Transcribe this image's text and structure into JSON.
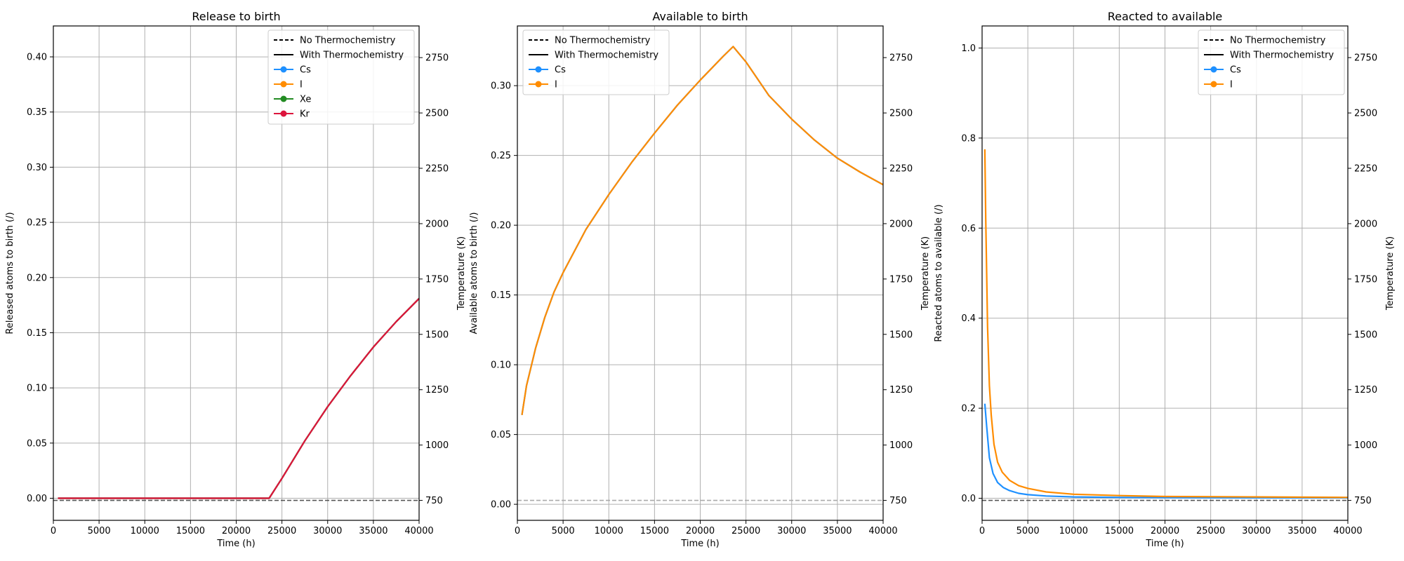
{
  "colors": {
    "Cs": "#1e90ff",
    "I": "#ff8c00",
    "Xe": "#228b22",
    "Kr": "#dc143c",
    "grid": "#b0b0b0",
    "temperature_dashed_left": "#555555",
    "temperature_dashed_mid": "#aaaaaa"
  },
  "chart_data": [
    {
      "type": "line",
      "title": "Release to birth",
      "xlabel": "Time (h)",
      "ylabel": "Released atoms to birth (/)",
      "y2label": "Temperature (K)",
      "xlim": [
        0,
        40000
      ],
      "ylim": [
        -0.02,
        0.428
      ],
      "y2lim": [
        660,
        2893
      ],
      "xticks": [
        0,
        5000,
        10000,
        15000,
        20000,
        25000,
        30000,
        35000,
        40000
      ],
      "yticks": [
        0.0,
        0.05,
        0.1,
        0.15,
        0.2,
        0.25,
        0.3,
        0.35,
        0.4
      ],
      "ytick_labels": [
        "0.00",
        "0.05",
        "0.10",
        "0.15",
        "0.20",
        "0.25",
        "0.30",
        "0.35",
        "0.40"
      ],
      "y2ticks": [
        750,
        1000,
        1250,
        1500,
        1750,
        2000,
        2250,
        2500,
        2750
      ],
      "grid": true,
      "legend_position": "top-right",
      "legend": [
        {
          "label": "No Thermochemistry",
          "style": "dashed",
          "color": "#000000"
        },
        {
          "label": "With Thermochemistry",
          "style": "solid",
          "color": "#000000"
        },
        {
          "label": "Cs",
          "style": "marker",
          "color": "#1e90ff"
        },
        {
          "label": "I",
          "style": "marker",
          "color": "#ff8c00"
        },
        {
          "label": "Xe",
          "style": "marker",
          "color": "#228b22"
        },
        {
          "label": "Kr",
          "style": "marker",
          "color": "#dc143c"
        }
      ],
      "temperature": {
        "axis": "y2",
        "value": 750,
        "style": "dashed",
        "color": "#555555"
      },
      "series": [
        {
          "name": "Cs",
          "color": "#1e90ff",
          "x": [
            500,
            5000,
            10000,
            15000,
            20000,
            23600,
            25000,
            27500,
            30000,
            32500,
            35000,
            37500,
            40000
          ],
          "values": [
            0,
            0,
            0,
            0,
            0,
            0,
            0.018,
            0.052,
            0.083,
            0.111,
            0.137,
            0.16,
            0.181
          ]
        },
        {
          "name": "I",
          "color": "#ff8c00",
          "x": [
            500,
            5000,
            10000,
            15000,
            20000,
            23600,
            25000,
            27500,
            30000,
            32500,
            35000,
            37500,
            40000
          ],
          "values": [
            0,
            0,
            0,
            0,
            0,
            0,
            0.018,
            0.052,
            0.083,
            0.111,
            0.137,
            0.16,
            0.181
          ]
        },
        {
          "name": "Xe",
          "color": "#228b22",
          "x": [
            500,
            5000,
            10000,
            15000,
            20000,
            23600,
            25000,
            27500,
            30000,
            32500,
            35000,
            37500,
            40000
          ],
          "values": [
            0,
            0,
            0,
            0,
            0,
            0,
            0.018,
            0.052,
            0.083,
            0.111,
            0.137,
            0.16,
            0.181
          ]
        },
        {
          "name": "Kr",
          "color": "#dc143c",
          "x": [
            500,
            5000,
            10000,
            15000,
            20000,
            23600,
            25000,
            27500,
            30000,
            32500,
            35000,
            37500,
            40000
          ],
          "values": [
            0,
            0,
            0,
            0,
            0,
            0,
            0.018,
            0.052,
            0.083,
            0.111,
            0.137,
            0.16,
            0.181
          ]
        }
      ]
    },
    {
      "type": "line",
      "title": "Available to birth",
      "xlabel": "Time (h)",
      "ylabel": "Available atoms to birth (/)",
      "y2label": "Temperature (K)",
      "xlim": [
        0,
        40000
      ],
      "ylim": [
        -0.0115,
        0.3428
      ],
      "y2lim": [
        660,
        2893
      ],
      "xticks": [
        0,
        5000,
        10000,
        15000,
        20000,
        25000,
        30000,
        35000,
        40000
      ],
      "yticks": [
        0.0,
        0.05,
        0.1,
        0.15,
        0.2,
        0.25,
        0.3
      ],
      "ytick_labels": [
        "0.00",
        "0.05",
        "0.10",
        "0.15",
        "0.20",
        "0.25",
        "0.30"
      ],
      "y2ticks": [
        750,
        1000,
        1250,
        1500,
        1750,
        2000,
        2250,
        2500,
        2750
      ],
      "grid": true,
      "legend_position": "top-left",
      "legend": [
        {
          "label": "No Thermochemistry",
          "style": "dashed",
          "color": "#000000"
        },
        {
          "label": "With Thermochemistry",
          "style": "solid",
          "color": "#000000"
        },
        {
          "label": "Cs",
          "style": "marker",
          "color": "#1e90ff"
        },
        {
          "label": "I",
          "style": "marker",
          "color": "#ff8c00"
        }
      ],
      "temperature": {
        "axis": "y2",
        "value": 750,
        "style": "dashed",
        "color": "#aaaaaa"
      },
      "series": [
        {
          "name": "Cs",
          "color": "#1e90ff",
          "x": [
            500,
            1000,
            2000,
            3000,
            4000,
            5000,
            7500,
            10000,
            12500,
            15000,
            17500,
            20000,
            22500,
            23600,
            25000,
            27500,
            30000,
            32500,
            35000,
            37500,
            40000
          ],
          "values": [
            0.064,
            0.085,
            0.112,
            0.134,
            0.152,
            0.166,
            0.197,
            0.222,
            0.245,
            0.266,
            0.286,
            0.304,
            0.321,
            0.328,
            0.317,
            0.293,
            0.276,
            0.261,
            0.248,
            0.238,
            0.229
          ]
        },
        {
          "name": "I",
          "color": "#ff8c00",
          "x": [
            500,
            1000,
            2000,
            3000,
            4000,
            5000,
            7500,
            10000,
            12500,
            15000,
            17500,
            20000,
            22500,
            23600,
            25000,
            27500,
            30000,
            32500,
            35000,
            37500,
            40000
          ],
          "values": [
            0.064,
            0.085,
            0.112,
            0.134,
            0.152,
            0.166,
            0.197,
            0.222,
            0.245,
            0.266,
            0.286,
            0.304,
            0.321,
            0.328,
            0.317,
            0.293,
            0.276,
            0.261,
            0.248,
            0.238,
            0.229
          ]
        }
      ]
    },
    {
      "type": "line",
      "title": "Reacted to available",
      "xlabel": "Time (h)",
      "ylabel": "Reacted atoms to available (/)",
      "y2label": "Temperature (K)",
      "xlim": [
        0,
        40000
      ],
      "ylim": [
        -0.049,
        1.049
      ],
      "y2lim": [
        660,
        2893
      ],
      "xticks": [
        0,
        5000,
        10000,
        15000,
        20000,
        25000,
        30000,
        35000,
        40000
      ],
      "yticks": [
        0.0,
        0.2,
        0.4,
        0.6,
        0.8,
        1.0
      ],
      "ytick_labels": [
        "0.0",
        "0.2",
        "0.4",
        "0.6",
        "0.8",
        "1.0"
      ],
      "y2ticks": [
        750,
        1000,
        1250,
        1500,
        1750,
        2000,
        2250,
        2500,
        2750
      ],
      "grid": true,
      "legend_position": "top-right",
      "legend": [
        {
          "label": "No Thermochemistry",
          "style": "dashed",
          "color": "#000000"
        },
        {
          "label": "With Thermochemistry",
          "style": "solid",
          "color": "#000000"
        },
        {
          "label": "Cs",
          "style": "marker",
          "color": "#1e90ff"
        },
        {
          "label": "I",
          "style": "marker",
          "color": "#ff8c00"
        }
      ],
      "temperature": {
        "axis": "y2",
        "value": 750,
        "style": "dashed",
        "color": "#555555"
      },
      "series": [
        {
          "name": "Cs",
          "color": "#1e90ff",
          "x": [
            300,
            500,
            800,
            1200,
            1700,
            2300,
            3000,
            4000,
            5000,
            7000,
            10000,
            15000,
            20000,
            30000,
            40000
          ],
          "values": [
            0.21,
            0.16,
            0.09,
            0.055,
            0.035,
            0.024,
            0.017,
            0.011,
            0.008,
            0.005,
            0.003,
            0.002,
            0.0015,
            0.001,
            0.001
          ]
        },
        {
          "name": "I",
          "color": "#ff8c00",
          "x": [
            300,
            400,
            600,
            800,
            1000,
            1300,
            1700,
            2200,
            3000,
            4000,
            5000,
            7000,
            10000,
            15000,
            20000,
            30000,
            40000
          ],
          "values": [
            0.775,
            0.62,
            0.38,
            0.25,
            0.185,
            0.12,
            0.08,
            0.058,
            0.04,
            0.028,
            0.022,
            0.014,
            0.009,
            0.006,
            0.004,
            0.003,
            0.002
          ]
        }
      ]
    }
  ]
}
